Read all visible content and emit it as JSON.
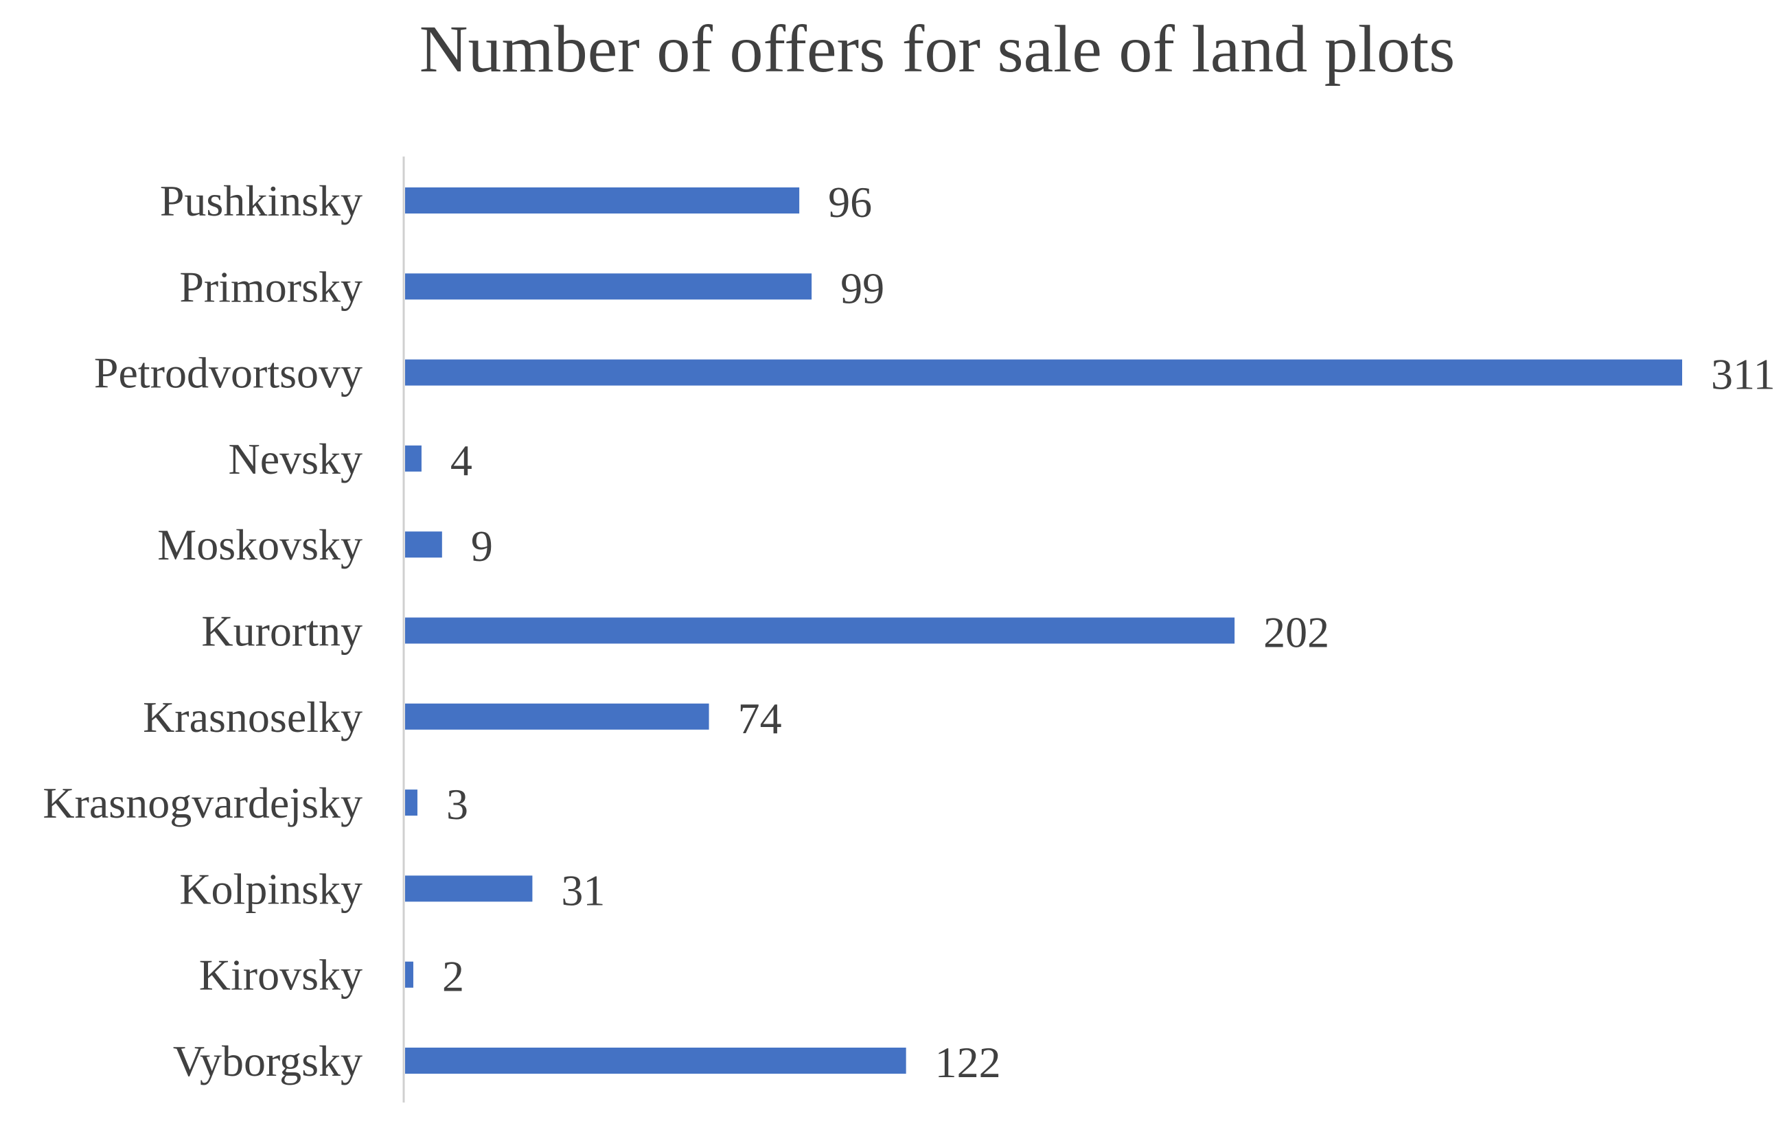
{
  "chart_data": {
    "type": "bar",
    "orientation": "horizontal",
    "title": "Number of offers for sale of land plots",
    "xlabel": "",
    "ylabel": "",
    "categories": [
      "Pushkinsky",
      "Primorsky",
      "Petrodvortsovy",
      "Nevsky",
      "Moskovsky",
      "Kurortny",
      "Krasnoselky",
      "Krasnogvardejsky",
      "Kolpinsky",
      "Kirovsky",
      "Vyborgsky"
    ],
    "values": [
      96,
      99,
      311,
      4,
      9,
      202,
      74,
      3,
      31,
      2,
      122
    ],
    "data_labels": [
      "96",
      "99",
      "311",
      "4",
      "9",
      "202",
      "74",
      "3",
      "31",
      "2",
      "122"
    ],
    "xlim": [
      0,
      311
    ],
    "grid": false,
    "legend": "none",
    "colors": {
      "bar": "#4472C4",
      "axis": "#D0D0D0",
      "text": "#404040"
    }
  }
}
